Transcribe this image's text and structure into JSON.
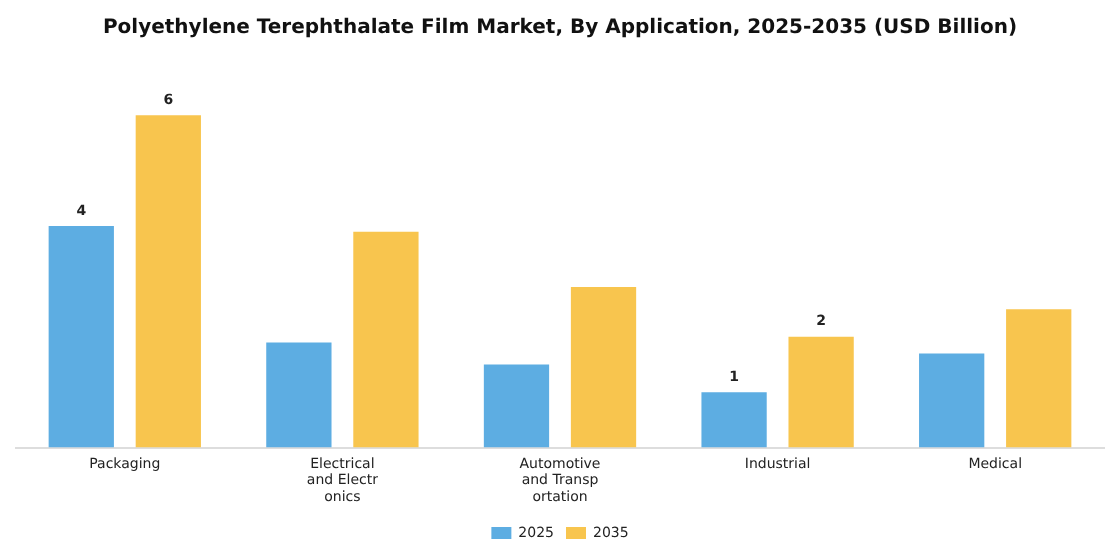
{
  "chart_data": {
    "type": "bar",
    "title": "Polyethylene Terephthalate Film Market, By Application, 2025-2035 (USD Billion)",
    "categories": [
      "Packaging",
      "Electrical and Electronics",
      "Automotive and Transportation",
      "Industrial",
      "Medical"
    ],
    "legend": "bottom",
    "grid": false,
    "series": [
      {
        "name": "2025",
        "color": "#5dade2",
        "values": [
          4,
          1.9,
          1.5,
          1,
          1.7
        ],
        "value_labels": [
          "4",
          null,
          null,
          "1",
          null
        ]
      },
      {
        "name": "2035",
        "color": "#f8c54e",
        "values": [
          6,
          3.9,
          2.9,
          2,
          2.5
        ],
        "value_labels": [
          "6",
          null,
          null,
          "2",
          null
        ]
      }
    ]
  }
}
